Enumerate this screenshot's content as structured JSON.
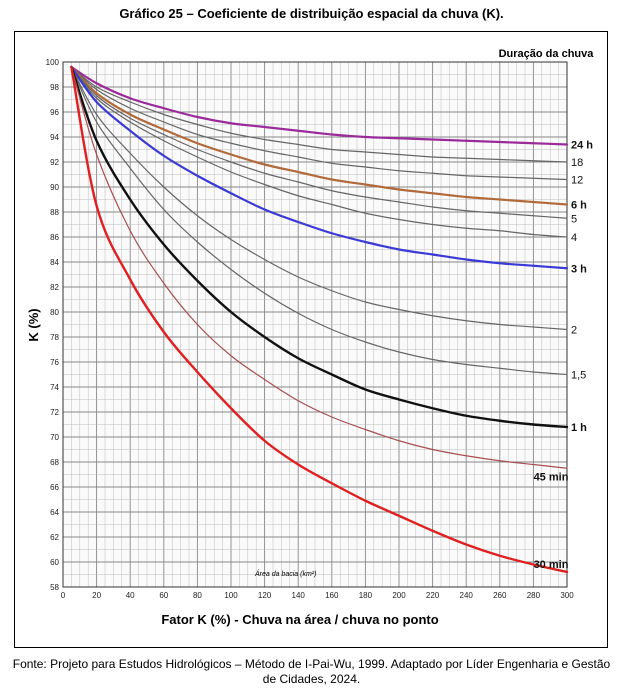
{
  "title": "Gráfico 25 – Coeficiente de distribuição espacial da chuva (K).",
  "footer": "Fonte: Projeto para Estudos Hidrológicos – Método de I-Pai-Wu, 1999. Adaptado por Líder Engenharia e Gestão de Cidades, 2024.",
  "chart_data": {
    "type": "line",
    "xlabel": "Fator K (%) - Chuva na área / chuva no ponto",
    "ylabel": "K (%)",
    "inner_label": "Área da bacia (km²)",
    "legend_title": "Duração da chuva",
    "xlim": [
      0,
      300
    ],
    "ylim": [
      58,
      100
    ],
    "xticks": [
      0,
      20,
      40,
      60,
      80,
      100,
      120,
      140,
      160,
      180,
      200,
      220,
      240,
      260,
      280,
      300
    ],
    "yticks": [
      58,
      60,
      62,
      64,
      66,
      68,
      70,
      72,
      74,
      76,
      78,
      80,
      82,
      84,
      86,
      88,
      90,
      92,
      94,
      96,
      98,
      100
    ],
    "grid": true,
    "x": [
      5,
      20,
      40,
      60,
      80,
      100,
      120,
      140,
      160,
      180,
      200,
      220,
      240,
      260,
      280,
      300
    ],
    "series": [
      {
        "name": "24 h",
        "color": "#9b2a9b",
        "width": 2.2,
        "bold": true,
        "values": [
          99.6,
          98.3,
          97.1,
          96.3,
          95.6,
          95.1,
          94.8,
          94.5,
          94.2,
          94.0,
          93.9,
          93.8,
          93.7,
          93.6,
          93.5,
          93.4
        ]
      },
      {
        "name": "18",
        "color": "#666666",
        "width": 1.2,
        "bold": false,
        "values": [
          99.6,
          98.0,
          96.8,
          95.8,
          95.0,
          94.3,
          93.8,
          93.4,
          93.0,
          92.8,
          92.6,
          92.4,
          92.3,
          92.2,
          92.1,
          92.0
        ]
      },
      {
        "name": "12",
        "color": "#666666",
        "width": 1.2,
        "bold": false,
        "values": [
          99.6,
          97.8,
          96.3,
          95.2,
          94.2,
          93.5,
          92.9,
          92.4,
          91.9,
          91.6,
          91.3,
          91.1,
          90.9,
          90.8,
          90.7,
          90.6
        ]
      },
      {
        "name": "6 h",
        "color": "#b26a3a",
        "width": 2.2,
        "bold": true,
        "values": [
          99.6,
          97.5,
          95.8,
          94.6,
          93.5,
          92.6,
          91.8,
          91.2,
          90.6,
          90.2,
          89.8,
          89.5,
          89.2,
          89.0,
          88.8,
          88.6
        ]
      },
      {
        "name": "5",
        "color": "#666666",
        "width": 1.2,
        "bold": false,
        "values": [
          99.6,
          97.3,
          95.5,
          94.2,
          93.0,
          92.0,
          91.1,
          90.4,
          89.7,
          89.2,
          88.8,
          88.4,
          88.1,
          87.9,
          87.7,
          87.5
        ]
      },
      {
        "name": "4",
        "color": "#666666",
        "width": 1.2,
        "bold": false,
        "values": [
          99.6,
          97.1,
          95.2,
          93.7,
          92.4,
          91.2,
          90.2,
          89.3,
          88.6,
          87.9,
          87.4,
          87.0,
          86.7,
          86.5,
          86.2,
          86.0
        ]
      },
      {
        "name": "3 h",
        "color": "#3a3ad6",
        "width": 2.2,
        "bold": true,
        "values": [
          99.6,
          96.8,
          94.5,
          92.5,
          90.9,
          89.5,
          88.2,
          87.2,
          86.3,
          85.6,
          85.0,
          84.6,
          84.2,
          83.9,
          83.7,
          83.5
        ]
      },
      {
        "name": "2",
        "color": "#666666",
        "width": 1.2,
        "bold": false,
        "values": [
          99.6,
          95.8,
          92.7,
          90.0,
          87.7,
          85.8,
          84.2,
          82.8,
          81.7,
          80.8,
          80.2,
          79.7,
          79.3,
          79.0,
          78.8,
          78.6
        ]
      },
      {
        "name": "1,5",
        "color": "#666666",
        "width": 1.2,
        "bold": false,
        "values": [
          99.6,
          95.2,
          91.5,
          88.2,
          85.6,
          83.4,
          81.5,
          79.9,
          78.6,
          77.6,
          76.8,
          76.2,
          75.8,
          75.5,
          75.2,
          75.0
        ]
      },
      {
        "name": "1 h",
        "color": "#111111",
        "width": 2.4,
        "bold": true,
        "values": [
          99.6,
          93.7,
          89.0,
          85.4,
          82.5,
          80.0,
          78.0,
          76.3,
          75.0,
          73.8,
          73.0,
          72.3,
          71.7,
          71.3,
          71.0,
          70.8
        ]
      },
      {
        "name": "45 min",
        "color": "#a84f4f",
        "width": 1.2,
        "bold": true,
        "values": [
          99.6,
          92.6,
          86.5,
          82.3,
          79.0,
          76.5,
          74.6,
          72.9,
          71.6,
          70.6,
          69.7,
          69.0,
          68.5,
          68.1,
          67.8,
          67.5
        ]
      },
      {
        "name": "30 min",
        "color": "#e02020",
        "width": 2.4,
        "bold": true,
        "values": [
          99.6,
          88.5,
          82.6,
          78.4,
          75.2,
          72.3,
          69.7,
          67.8,
          66.3,
          64.9,
          63.7,
          62.5,
          61.4,
          60.5,
          59.8,
          59.2
        ]
      }
    ]
  }
}
